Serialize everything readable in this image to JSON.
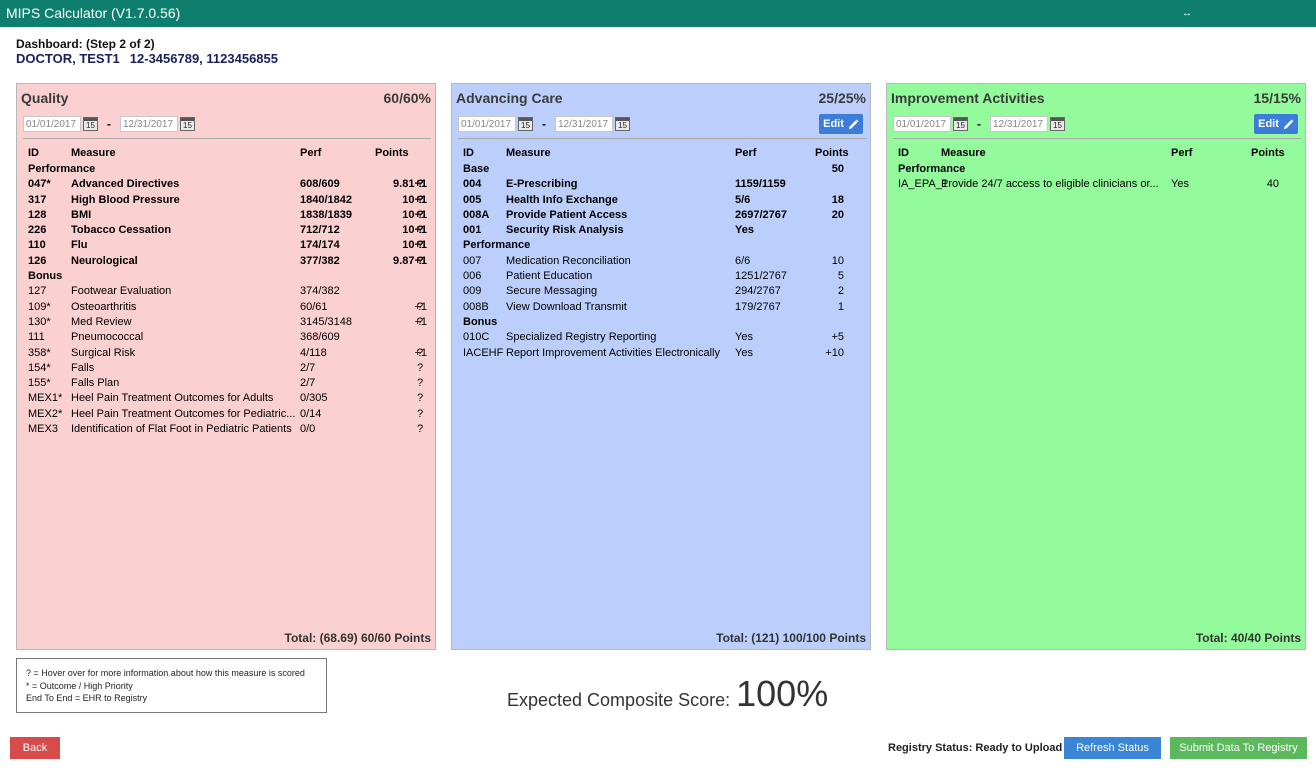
{
  "window": {
    "title": "MIPS Calculator (V1.7.0.56)",
    "resize_glyph": "↔"
  },
  "dashboard": {
    "step": "Dashboard: (Step 2 of 2)",
    "doctor_name": "DOCTOR, TEST1",
    "doctor_ids": "12-3456789, 1123456855"
  },
  "columns": {
    "id": "ID",
    "measure": "Measure",
    "perf": "Perf",
    "points": "Points"
  },
  "quality": {
    "title": "Quality",
    "score": "60/60%",
    "date_from": "01/01/2017",
    "date_to": "12/31/2017",
    "total": "Total: (68.69) 60/60 Points",
    "sections": [
      {
        "label": "Performance",
        "rows": [
          {
            "id": "047*",
            "measure": "Advanced Directives",
            "perf": "608/609",
            "points": "9.81+1",
            "q": "?"
          },
          {
            "id": "317",
            "measure": "High Blood Pressure",
            "perf": "1840/1842",
            "points": "10+1",
            "q": "?"
          },
          {
            "id": "128",
            "measure": "BMI",
            "perf": "1838/1839",
            "points": "10+1",
            "q": "?"
          },
          {
            "id": "226",
            "measure": "Tobacco Cessation",
            "perf": "712/712",
            "points": "10+1",
            "q": "?"
          },
          {
            "id": "110",
            "measure": "Flu",
            "perf": "174/174",
            "points": "10+1",
            "q": "?"
          },
          {
            "id": "126",
            "measure": "Neurological",
            "perf": "377/382",
            "points": "9.87+1",
            "q": "?"
          }
        ]
      },
      {
        "label": "Bonus",
        "rows": [
          {
            "id": "127",
            "measure": "Footwear Evaluation",
            "perf": "374/382",
            "points": "",
            "q": ""
          },
          {
            "id": "109*",
            "measure": "Osteoarthritis",
            "perf": "60/61",
            "points": "+1",
            "q": "?"
          },
          {
            "id": "130*",
            "measure": "Med Review",
            "perf": "3145/3148",
            "points": "+1",
            "q": "?"
          },
          {
            "id": "111",
            "measure": "Pneumococcal",
            "perf": "368/609",
            "points": "",
            "q": ""
          },
          {
            "id": "358*",
            "measure": "Surgical Risk",
            "perf": "4/118",
            "points": "+1",
            "q": "?"
          },
          {
            "id": "154*",
            "measure": "Falls",
            "perf": "2/7",
            "points": "",
            "q": "?"
          },
          {
            "id": "155*",
            "measure": "Falls Plan",
            "perf": "2/7",
            "points": "",
            "q": "?"
          },
          {
            "id": "MEX1*",
            "measure": "Heel Pain Treatment Outcomes for Adults",
            "perf": "0/305",
            "points": "",
            "q": "?"
          },
          {
            "id": "MEX2*",
            "measure": "Heel Pain Treatment Outcomes for Pediatric...",
            "perf": "0/14",
            "points": "",
            "q": "?"
          },
          {
            "id": "MEX3",
            "measure": "Identification of Flat Foot in Pediatric Patients",
            "perf": "0/0",
            "points": "",
            "q": "?"
          }
        ]
      }
    ]
  },
  "advancing": {
    "title": "Advancing Care",
    "score": "25/25%",
    "date_from": "01/01/2017",
    "date_to": "12/31/2017",
    "edit_label": "Edit",
    "total": "Total: (121) 100/100 Points",
    "base_label": "Base",
    "base_points": "50",
    "base_rows": [
      {
        "id": "004",
        "measure": "E-Prescribing",
        "perf": "1159/1159",
        "points": ""
      },
      {
        "id": "005",
        "measure": "Health Info Exchange",
        "perf": "5/6",
        "points": "18"
      },
      {
        "id": "008A",
        "measure": "Provide Patient Access",
        "perf": "2697/2767",
        "points": "20"
      },
      {
        "id": "001",
        "measure": "Security Risk Analysis",
        "perf": "Yes",
        "points": ""
      }
    ],
    "sections": [
      {
        "label": "Performance",
        "rows": [
          {
            "id": "007",
            "measure": "Medication Reconciliation",
            "perf": "6/6",
            "points": "10"
          },
          {
            "id": "006",
            "measure": "Patient Education",
            "perf": "1251/2767",
            "points": "5"
          },
          {
            "id": "009",
            "measure": "Secure Messaging",
            "perf": "294/2767",
            "points": "2"
          },
          {
            "id": "008B",
            "measure": "View Download Transmit",
            "perf": "179/2767",
            "points": "1"
          }
        ]
      },
      {
        "label": "Bonus",
        "rows": [
          {
            "id": "010C",
            "measure": "Specialized Registry Reporting",
            "perf": "Yes",
            "points": "+5"
          },
          {
            "id": "IACEHF",
            "measure": "Report Improvement Activities Electronically",
            "perf": "Yes",
            "points": "+10"
          }
        ]
      }
    ]
  },
  "improvement": {
    "title": "Improvement Activities",
    "score": "15/15%",
    "date_from": "01/01/2017",
    "date_to": "12/31/2017",
    "edit_label": "Edit",
    "total": "Total: 40/40 Points",
    "section_label": "Performance",
    "rows": [
      {
        "id": "IA_EPA_1",
        "measure": "Provide 24/7 access to eligible clinicians or...",
        "perf": "Yes",
        "points": "40"
      }
    ]
  },
  "legend": [
    "? = Hover over for more information about how this measure is scored",
    "* = Outcome / High Priority",
    "End To End = EHR to Registry"
  ],
  "composite": {
    "label": "Expected Composite Score:",
    "value": "100%"
  },
  "footer": {
    "back_label": "Back",
    "registry_status": "Registry Status: Ready to Upload",
    "refresh_label": "Refresh Status",
    "submit_label": "Submit Data To Registry"
  },
  "icons": {
    "calendar": "calendar-icon",
    "calendar_day": "15",
    "edit": "pencil-icon"
  }
}
